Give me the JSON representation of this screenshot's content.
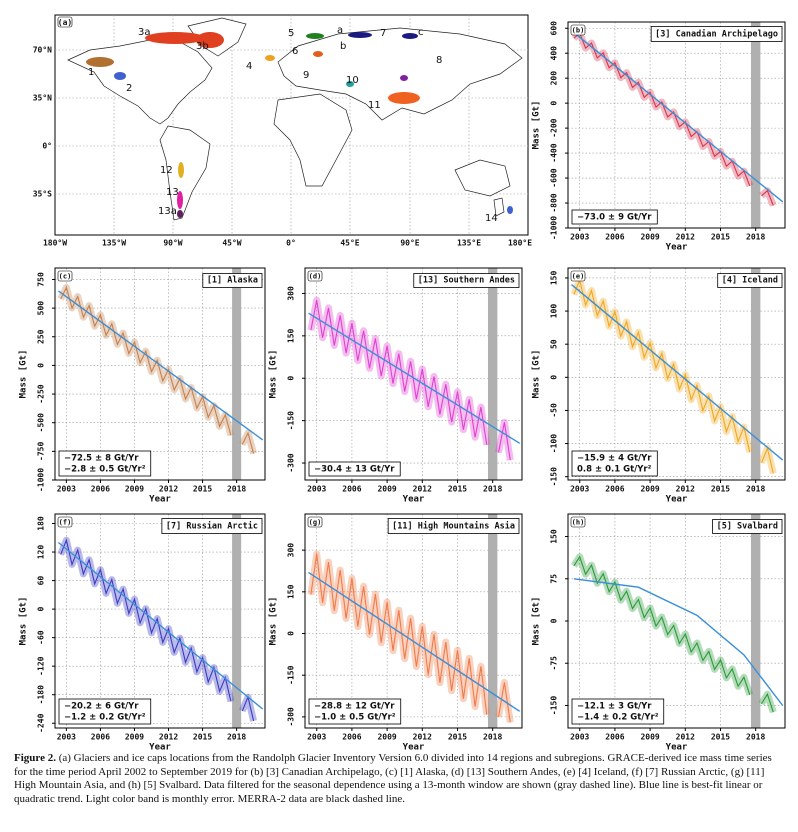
{
  "map": {
    "panel": "(a)",
    "lat_labels": [
      "70°N",
      "35°N",
      "0°",
      "35°S"
    ],
    "lon_labels": [
      "180°W",
      "135°W",
      "90°W",
      "45°W",
      "0°",
      "45°E",
      "90°E",
      "135°E",
      "180°E"
    ],
    "regions": [
      "1",
      "2",
      "3a",
      "3b",
      "4",
      "5",
      "6",
      "7",
      "8",
      "9",
      "10",
      "11",
      "12",
      "13",
      "13a",
      "14",
      "a",
      "b",
      "c"
    ]
  },
  "chart_data": [
    {
      "type": "line",
      "panel": "(b)",
      "title": "[3] Canadian Archipelago",
      "ylabel": "Mass [Gt]",
      "xlabel": "Year",
      "annotations": [
        "−73.0 ± 9 Gt/Yr"
      ],
      "x": [
        2002.5,
        2003,
        2003.5,
        2004,
        2004.5,
        2005,
        2005.5,
        2006,
        2006.5,
        2007,
        2007.5,
        2008,
        2008.5,
        2009,
        2009.5,
        2010,
        2010.5,
        2011,
        2011.5,
        2012,
        2012.5,
        2013,
        2013.5,
        2014,
        2014.5,
        2015,
        2015.5,
        2016,
        2016.5,
        2017,
        2017.5,
        2018,
        2018.5,
        2019,
        2019.5
      ],
      "series": [
        {
          "color": "#d8344e",
          "values": [
            520,
            561,
            441,
            482,
            362,
            403,
            284,
            324,
            205,
            245,
            126,
            167,
            47,
            88,
            -32,
            9,
            -110,
            -70,
            -189,
            -149,
            -268,
            -228,
            -347,
            -307,
            -426,
            -386,
            -505,
            -465,
            -584,
            -544,
            -663,
            null,
            -742,
            -701,
            -820
          ]
        },
        {
          "color": "#3a8fd8",
          "x": [
            2002.3,
            2020.3
          ],
          "values": [
            580,
            -790
          ]
        }
      ],
      "xlim": [
        2002,
        2020.5
      ],
      "ylim": [
        -1000,
        650
      ],
      "xticks": [
        2003,
        2006,
        2009,
        2012,
        2015,
        2018
      ],
      "yticks": [
        600,
        400,
        200,
        0,
        -200,
        -400,
        -600,
        -800,
        -1000
      ],
      "grid": true,
      "shade": [
        2017.6,
        2018.4
      ],
      "shade_color": "#b0b0b0"
    },
    {
      "type": "line",
      "panel": "(c)",
      "title": "[1] Alaska",
      "ylabel": "Mass [Gt]",
      "xlabel": "Year",
      "annotations": [
        "−72.5 ± 8 Gt/Yr",
        "−2.8 ± 0.5 Gt/Yr²"
      ],
      "x": [
        2002.5,
        2003,
        2003.5,
        2004,
        2004.5,
        2005,
        2005.5,
        2006,
        2006.5,
        2007,
        2007.5,
        2008,
        2008.5,
        2009,
        2009.5,
        2010,
        2010.5,
        2011,
        2011.5,
        2012,
        2012.5,
        2013,
        2013.5,
        2014,
        2014.5,
        2015,
        2015.5,
        2016,
        2016.5,
        2017,
        2017.5,
        2018,
        2018.5,
        2019,
        2019.5
      ],
      "series": [
        {
          "color": "#c4804e",
          "values": [
            580,
            680,
            501,
            601,
            421,
            522,
            342,
            442,
            262,
            363,
            183,
            283,
            104,
            204,
            24,
            125,
            -55,
            45,
            -135,
            -34,
            -214,
            -114,
            -293,
            -193,
            -373,
            -272,
            -452,
            -352,
            -532,
            -431,
            -611,
            null,
            -690,
            -590,
            -770
          ]
        },
        {
          "color": "#3a8fd8",
          "x": [
            2002.3,
            2020.3
          ],
          "values": [
            650,
            -650
          ]
        }
      ],
      "xlim": [
        2002,
        2020.5
      ],
      "ylim": [
        -1000,
        850
      ],
      "xticks": [
        2003,
        2006,
        2009,
        2012,
        2015,
        2018
      ],
      "yticks": [
        750,
        500,
        250,
        0,
        -250,
        -500,
        -750,
        -1000
      ],
      "grid": true,
      "shade": [
        2017.6,
        2018.4
      ],
      "shade_color": "#b0b0b0"
    },
    {
      "type": "line",
      "panel": "(d)",
      "title": "[13] Southern Andes",
      "ylabel": "Mass [Gt]",
      "xlabel": "Year",
      "annotations": [
        "−30.4 ± 13 Gt/Yr"
      ],
      "x": [
        2002.5,
        2003,
        2003.5,
        2004,
        2004.5,
        2005,
        2005.5,
        2006,
        2006.5,
        2007,
        2007.5,
        2008,
        2008.5,
        2009,
        2009.5,
        2010,
        2010.5,
        2011,
        2011.5,
        2012,
        2012.5,
        2013,
        2013.5,
        2014,
        2014.5,
        2015,
        2015.5,
        2016,
        2016.5,
        2017,
        2017.5,
        2018,
        2018.5,
        2019,
        2019.5
      ],
      "series": [
        {
          "color": "#e040d0",
          "values": [
            170,
            276,
            143,
            249,
            116,
            222,
            89,
            195,
            62,
            168,
            35,
            141,
            8,
            114,
            -19,
            87,
            -47,
            60,
            -74,
            33,
            -101,
            6,
            -128,
            -21,
            -155,
            -48,
            -182,
            -75,
            -209,
            -102,
            -236,
            null,
            -263,
            -156,
            -290
          ]
        },
        {
          "color": "#3a8fd8",
          "x": [
            2002.3,
            2020.3
          ],
          "values": [
            230,
            -230
          ]
        }
      ],
      "xlim": [
        2002,
        2020.5
      ],
      "ylim": [
        -360,
        390
      ],
      "xticks": [
        2003,
        2006,
        2009,
        2012,
        2015,
        2018
      ],
      "yticks": [
        300,
        150,
        0,
        -150,
        -300
      ],
      "grid": true,
      "shade": [
        2017.6,
        2018.4
      ],
      "shade_color": "#b0b0b0"
    },
    {
      "type": "line",
      "panel": "(e)",
      "title": "[4] Iceland",
      "ylabel": "Mass [Gt]",
      "xlabel": "Year",
      "annotations": [
        "−15.9 ± 4 Gt/Yr",
        "0.8 ± 0.1 Gt/Yr²"
      ],
      "x": [
        2002.5,
        2003,
        2003.5,
        2004,
        2004.5,
        2005,
        2005.5,
        2006,
        2006.5,
        2007,
        2007.5,
        2008,
        2008.5,
        2009,
        2009.5,
        2010,
        2010.5,
        2011,
        2011.5,
        2012,
        2012.5,
        2013,
        2013.5,
        2014,
        2014.5,
        2015,
        2015.5,
        2016,
        2016.5,
        2017,
        2017.5,
        2018,
        2018.5,
        2019,
        2019.5
      ],
      "series": [
        {
          "color": "#f0a820",
          "values": [
            125,
            147,
            109,
            131,
            93,
            115,
            77,
            99,
            62,
            84,
            46,
            68,
            30,
            52,
            14,
            36,
            -2,
            20,
            -18,
            4,
            -34,
            -12,
            -50,
            -28,
            -66,
            -44,
            -82,
            -59,
            -97,
            -75,
            -113,
            null,
            -129,
            -107,
            -145
          ]
        },
        {
          "color": "#3a8fd8",
          "x": [
            2002.3,
            2020.3
          ],
          "values": [
            140,
            -125
          ]
        }
      ],
      "xlim": [
        2002,
        2020.5
      ],
      "ylim": [
        -155,
        165
      ],
      "xticks": [
        2003,
        2006,
        2009,
        2012,
        2015,
        2018
      ],
      "yticks": [
        150,
        100,
        50,
        0,
        -50,
        -100,
        -150
      ],
      "grid": true,
      "shade": [
        2017.6,
        2018.4
      ],
      "shade_color": "#b0b0b0"
    },
    {
      "type": "line",
      "panel": "(f)",
      "title": "[7] Russian Arctic",
      "ylabel": "Mass [Gt]",
      "xlabel": "Year",
      "annotations": [
        "−20.2 ± 6 Gt/Yr",
        "−1.2 ± 0.2 Gt/Yr²"
      ],
      "x": [
        2002.5,
        2003,
        2003.5,
        2004,
        2004.5,
        2005,
        2005.5,
        2006,
        2006.5,
        2007,
        2007.5,
        2008,
        2008.5,
        2009,
        2009.5,
        2010,
        2010.5,
        2011,
        2011.5,
        2012,
        2012.5,
        2013,
        2013.5,
        2014,
        2014.5,
        2015,
        2015.5,
        2016,
        2016.5,
        2017,
        2017.5,
        2018,
        2018.5,
        2019,
        2019.5
      ],
      "series": [
        {
          "color": "#3a3ac4",
          "values": [
            115,
            145,
            94,
            124,
            74,
            104,
            53,
            83,
            33,
            62,
            12,
            42,
            -9,
            21,
            -29,
            1,
            -50,
            -20,
            -70,
            -41,
            -91,
            -61,
            -112,
            -82,
            -132,
            -102,
            -153,
            -123,
            -173,
            -144,
            -194,
            null,
            -214,
            -185,
            -235
          ]
        },
        {
          "color": "#3a8fd8",
          "x": [
            2002.3,
            2020.3
          ],
          "values": [
            140,
            -210
          ]
        }
      ],
      "xlim": [
        2002,
        2020.5
      ],
      "ylim": [
        -250,
        200
      ],
      "xticks": [
        2003,
        2006,
        2009,
        2012,
        2015,
        2018
      ],
      "yticks": [
        180,
        120,
        60,
        0,
        -60,
        -120,
        -180,
        -240
      ],
      "grid": true,
      "shade": [
        2017.6,
        2018.4
      ],
      "shade_color": "#b0b0b0"
    },
    {
      "type": "line",
      "panel": "(g)",
      "title": "[11] High Mountains Asia",
      "ylabel": "Mass [Gt]",
      "xlabel": "Year",
      "annotations": [
        "−28.8 ± 12 Gt/Yr",
        "−1.0 ± 0.5 Gt/Yr²"
      ],
      "x": [
        2002.5,
        2003,
        2003.5,
        2004,
        2004.5,
        2005,
        2005.5,
        2006,
        2006.5,
        2007,
        2007.5,
        2008,
        2008.5,
        2009,
        2009.5,
        2010,
        2010.5,
        2011,
        2011.5,
        2012,
        2012.5,
        2013,
        2013.5,
        2014,
        2014.5,
        2015,
        2015.5,
        2016,
        2016.5,
        2017,
        2017.5,
        2018,
        2018.5,
        2019,
        2019.5
      ],
      "series": [
        {
          "color": "#f07a48",
          "values": [
            140,
            286,
            111,
            257,
            82,
            228,
            54,
            199,
            25,
            170,
            -4,
            142,
            -33,
            113,
            -62,
            84,
            -91,
            55,
            -119,
            26,
            -148,
            -3,
            -177,
            -31,
            -206,
            -60,
            -235,
            -89,
            -263,
            -118,
            -292,
            null,
            -300,
            -176,
            -320
          ]
        },
        {
          "color": "#3a8fd8",
          "x": [
            2002.3,
            2020.3
          ],
          "values": [
            220,
            -280
          ]
        }
      ],
      "xlim": [
        2002,
        2020.5
      ],
      "ylim": [
        -340,
        430
      ],
      "xticks": [
        2003,
        2006,
        2009,
        2012,
        2015,
        2018
      ],
      "yticks": [
        300,
        150,
        0,
        -150,
        -300
      ],
      "grid": true,
      "shade": [
        2017.6,
        2018.4
      ],
      "shade_color": "#b0b0b0"
    },
    {
      "type": "line",
      "panel": "(h)",
      "title": "[5] Svalbard",
      "ylabel": "Mass [Gt]",
      "xlabel": "Year",
      "annotations": [
        "−12.1 ± 3 Gt/Yr",
        "−1.4 ± 0.2 Gt/Yr²"
      ],
      "x": [
        2002.5,
        2003,
        2003.5,
        2004,
        2004.5,
        2005,
        2005.5,
        2006,
        2006.5,
        2007,
        2007.5,
        2008,
        2008.5,
        2009,
        2009.5,
        2010,
        2010.5,
        2011,
        2011.5,
        2012,
        2012.5,
        2013,
        2013.5,
        2014,
        2014.5,
        2015,
        2015.5,
        2016,
        2016.5,
        2017,
        2017.5,
        2018,
        2018.5,
        2019,
        2019.5
      ],
      "series": [
        {
          "color": "#2a9a3a",
          "values": [
            98,
            114,
            83,
            99,
            67,
            84,
            52,
            69,
            37,
            53,
            22,
            38,
            6,
            23,
            -9,
            7,
            -24,
            -8,
            -40,
            -23,
            -55,
            -39,
            -70,
            -54,
            -86,
            -69,
            -101,
            -85,
            -116,
            -100,
            -131,
            null,
            -147,
            -130,
            -162
          ]
        },
        {
          "color": "#3a8fd8",
          "x": [
            2002.5,
            2008,
            2013,
            2017,
            2020.3
          ],
          "values": [
            75,
            60,
            10,
            -60,
            -150
          ]
        }
      ],
      "xlim": [
        2002,
        2020.5
      ],
      "ylim": [
        -190,
        190
      ],
      "xticks": [
        2003,
        2006,
        2009,
        2012,
        2015,
        2018
      ],
      "yticks": [
        150,
        75,
        0,
        -75,
        -150
      ],
      "grid": true,
      "shade": [
        2017.6,
        2018.4
      ],
      "shade_color": "#b0b0b0"
    }
  ],
  "caption": {
    "label": "Figure 2.",
    "text": "(a) Glaciers and ice caps locations from the Randolph Glacier Inventory Version 6.0 divided into 14 regions and subregions. GRACE-derived ice mass time series for the time period April 2002 to September 2019 for (b) [3] Canadian Archipelago, (c) [1] Alaska, (d) [13] Southern Andes, (e) [4] Iceland, (f) [7] Russian Arctic, (g) [11] High Mountain Asia, and (h) [5] Svalbard. Data filtered for the seasonal dependence using a 13-month window are shown (gray dashed line). Blue line is best-fit linear or quadratic trend. Light color band is monthly error. MERRA-2 data are black dashed line."
  }
}
